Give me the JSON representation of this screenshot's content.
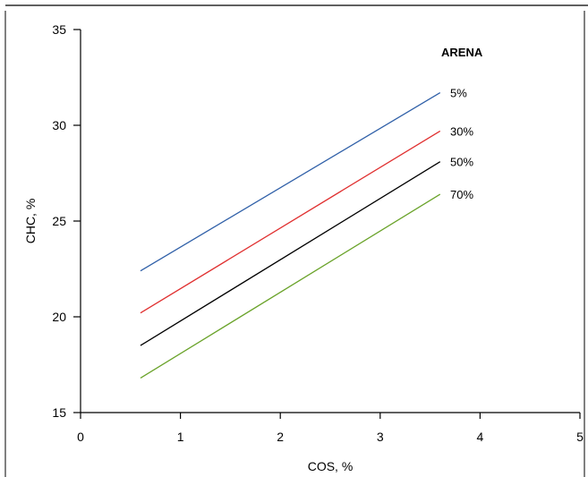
{
  "chart_data": {
    "type": "line",
    "title": "",
    "xlabel": "COS, %",
    "ylabel": "CHC, %",
    "xlim": [
      0,
      5
    ],
    "ylim": [
      15,
      35
    ],
    "x_ticks": [
      0,
      1,
      2,
      3,
      4,
      5
    ],
    "y_ticks": [
      15,
      20,
      25,
      30,
      35
    ],
    "grid": false,
    "legend_title": "ARENA",
    "legend_placement": "right, next to line ends",
    "series": [
      {
        "name": "5%",
        "color": "#3060a8",
        "x": [
          0.6,
          3.6
        ],
        "y": [
          22.4,
          31.7
        ]
      },
      {
        "name": "30%",
        "color": "#e03030",
        "x": [
          0.6,
          3.6
        ],
        "y": [
          20.2,
          29.7
        ]
      },
      {
        "name": "50%",
        "color": "#000000",
        "x": [
          0.6,
          3.6
        ],
        "y": [
          18.5,
          28.1
        ]
      },
      {
        "name": "70%",
        "color": "#6aa32a",
        "x": [
          0.6,
          3.6
        ],
        "y": [
          16.8,
          26.4
        ]
      }
    ]
  }
}
